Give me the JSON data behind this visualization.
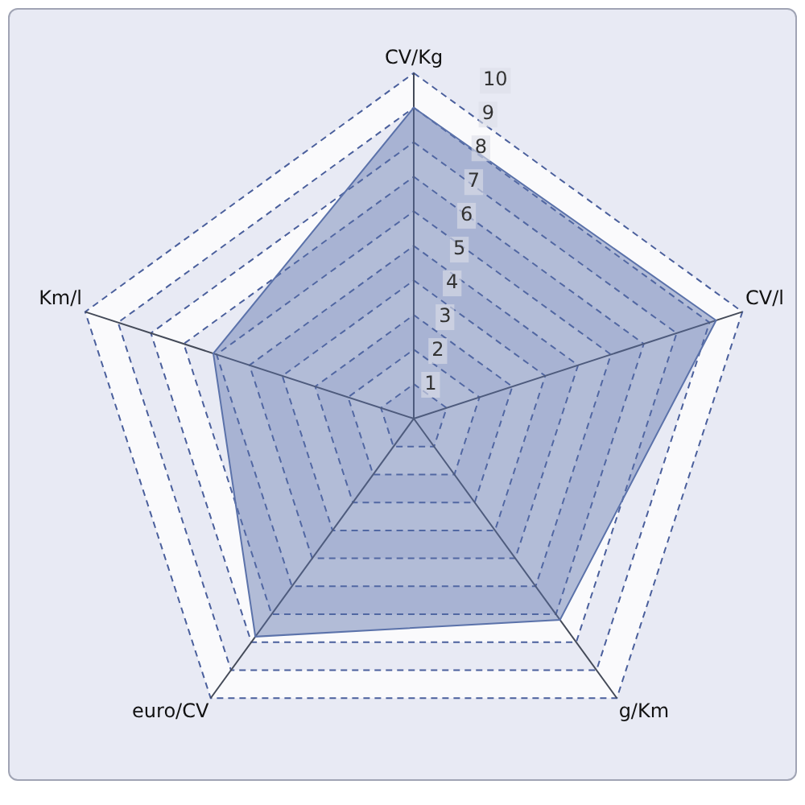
{
  "chart_data": {
    "type": "radar",
    "categories": [
      "CV/Kg",
      "CV/l",
      "g/Km",
      "euro/CV",
      "Km/l"
    ],
    "series": [
      {
        "color": "#5b72aa",
        "values": [
          9,
          9.2,
          7.2,
          7.8,
          6.1
        ]
      }
    ],
    "ylim": [
      0,
      10
    ],
    "yticks": [
      1,
      2,
      3,
      4,
      5,
      6,
      7,
      8,
      9,
      10
    ],
    "grid": true,
    "legend": false,
    "marker": "none",
    "line_style": "solid"
  }
}
